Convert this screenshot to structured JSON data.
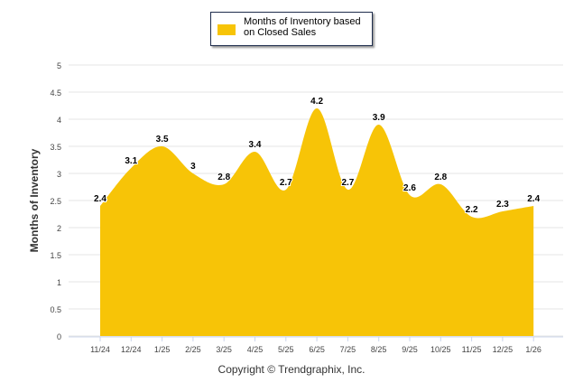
{
  "chart_data": {
    "type": "area",
    "title": "",
    "categories": [
      "11/24",
      "12/24",
      "1/25",
      "2/25",
      "3/25",
      "4/25",
      "5/25",
      "6/25",
      "7/25",
      "8/25",
      "9/25",
      "10/25",
      "11/25",
      "12/25",
      "1/26"
    ],
    "series": [
      {
        "name": "Months of Inventory based on Closed Sales",
        "values": [
          2.4,
          3.1,
          3.5,
          3,
          2.8,
          3.4,
          2.7,
          4.2,
          2.7,
          3.9,
          2.6,
          2.8,
          2.2,
          2.3,
          2.4
        ],
        "color": "#f7c407"
      }
    ],
    "ylabel": "Months of Inventory",
    "xlabel": "",
    "ylim": [
      0,
      5
    ],
    "yticks": [
      "0",
      "0.5",
      "1",
      "1.5",
      "2",
      "2.5",
      "3",
      "3.5",
      "4",
      "4.5",
      "5"
    ],
    "grid": true,
    "legend": "top-center"
  },
  "credit": "Copyright © Trendgraphix, Inc."
}
